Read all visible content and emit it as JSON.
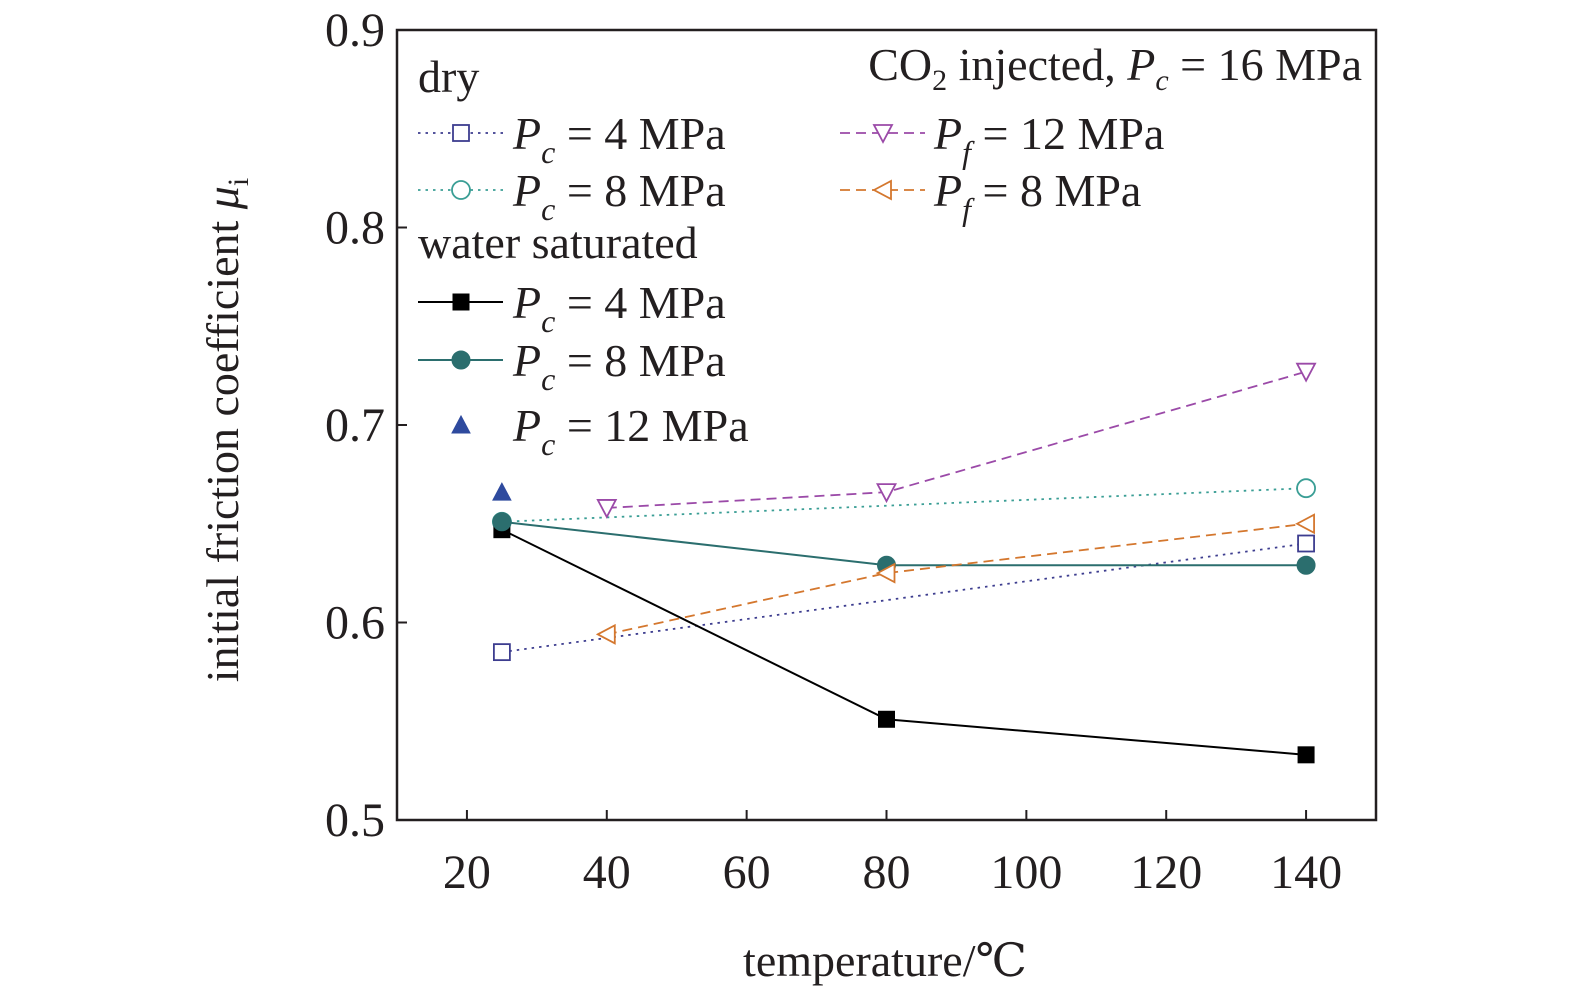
{
  "chart_data": {
    "type": "line",
    "xlabel": "temperature/℃",
    "ylabel_prefix": "initial friction coefficient ",
    "ylabel_symbol": "μ",
    "ylabel_sub": "i",
    "xlim": [
      10,
      150
    ],
    "ylim": [
      0.5,
      0.9
    ],
    "xticks": [
      20,
      40,
      60,
      80,
      100,
      120,
      140
    ],
    "yticks": [
      0.5,
      0.6,
      0.7,
      0.8,
      0.9
    ],
    "xtick_labels": [
      "20",
      "40",
      "60",
      "80",
      "100",
      "120",
      "140"
    ],
    "ytick_labels": [
      "0.5",
      "0.6",
      "0.7",
      "0.8",
      "0.9"
    ],
    "grid": false,
    "legend_position": "top-left",
    "legend_groups": {
      "dry": "dry",
      "water": "water saturated",
      "co2_prefix": "CO",
      "co2_sub": "2",
      "co2_mid": " injected, ",
      "co2_var": "P",
      "co2_var_sub": "c",
      "co2_value": " = 16 MPa"
    },
    "series": [
      {
        "group": "dry",
        "var": "P",
        "sub": "c",
        "value": " = 4 MPa",
        "color": "#3d3d8f",
        "marker": "square-open",
        "line": "dotted",
        "x": [
          25,
          140
        ],
        "y": [
          0.585,
          0.64
        ]
      },
      {
        "group": "dry",
        "var": "P",
        "sub": "c",
        "value": " = 8 MPa",
        "color": "#3a9e95",
        "marker": "circle-open",
        "line": "dotted",
        "x": [
          25,
          140
        ],
        "y": [
          0.651,
          0.668
        ]
      },
      {
        "group": "water",
        "var": "P",
        "sub": "c",
        "value": " = 4 MPa",
        "color": "#000000",
        "marker": "square-filled",
        "line": "solid",
        "x": [
          25,
          80,
          140
        ],
        "y": [
          0.647,
          0.551,
          0.533
        ]
      },
      {
        "group": "water",
        "var": "P",
        "sub": "c",
        "value": " = 8 MPa",
        "color": "#2b6e6e",
        "marker": "circle-filled",
        "line": "solid",
        "x": [
          25,
          80,
          140
        ],
        "y": [
          0.651,
          0.629,
          0.629
        ]
      },
      {
        "group": "water",
        "var": "P",
        "sub": "c",
        "value": " = 12 MPa",
        "color": "#2e4a9e",
        "marker": "triangle-filled",
        "line": "none",
        "x": [
          25
        ],
        "y": [
          0.666
        ]
      },
      {
        "group": "co2",
        "var": "P",
        "sub": "f",
        "value": " = 12 MPa",
        "color": "#9b4aa8",
        "marker": "triangle-down-open",
        "line": "dashed",
        "x": [
          40,
          80,
          140
        ],
        "y": [
          0.658,
          0.666,
          0.727
        ]
      },
      {
        "group": "co2",
        "var": "P",
        "sub": "f",
        "value": " = 8 MPa",
        "color": "#d4772e",
        "marker": "triangle-left-open",
        "line": "dashed",
        "x": [
          40,
          80,
          140
        ],
        "y": [
          0.594,
          0.625,
          0.65
        ]
      }
    ]
  }
}
